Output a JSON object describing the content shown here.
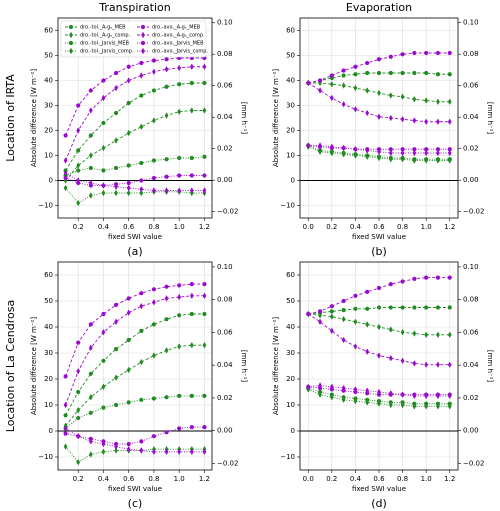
{
  "chart_data": [
    {
      "type": "line",
      "title": "Transpiration",
      "row_label": "Location of IRTA",
      "caption": "(a)",
      "ylabel": "Absolute difference [W m⁻²]",
      "xlabel": "fixed SWI value",
      "y2label": "[mm h⁻¹]",
      "legend": "upper left",
      "grid": true,
      "hline": 0,
      "xlim": [
        0.04,
        1.26
      ],
      "xticks": [
        {
          "value": 0.2,
          "label": "0.2"
        },
        {
          "value": 0.4,
          "label": "0.4"
        },
        {
          "value": 0.6,
          "label": "0.6"
        },
        {
          "value": 0.8,
          "label": "0.8"
        },
        {
          "value": 1.0,
          "label": "1.0"
        },
        {
          "value": 1.2,
          "label": "1.2"
        }
      ],
      "ylim": [
        -15,
        65
      ],
      "yticks": [
        {
          "value": -10,
          "label": "−10"
        },
        0,
        10,
        20,
        30,
        40,
        50,
        60
      ],
      "y2lim": [
        -0.024,
        0.103
      ],
      "y2ticks": [
        {
          "value": -0.02,
          "label": "−0.02"
        },
        {
          "value": 0,
          "label": "0.00"
        },
        0.02,
        0.04,
        0.06,
        0.08,
        {
          "value": 0.1,
          "label": "0.10"
        }
      ],
      "x": [
        0.1,
        0.2,
        0.3,
        0.4,
        0.5,
        0.6,
        0.7,
        0.8,
        0.9,
        1.0,
        1.1,
        1.2
      ],
      "series": [
        {
          "name": "dro.-tol._A-gₛ_MEB",
          "color": "#228b22",
          "marker": "o",
          "linestyle": "dashed",
          "values": [
            4,
            12,
            18,
            23,
            27,
            31,
            34,
            36,
            37.5,
            38.5,
            39,
            39
          ]
        },
        {
          "name": "dro.-tol._A-gₛ_comp.",
          "color": "#228b22",
          "marker": "d",
          "linestyle": "dashed",
          "values": [
            0,
            6,
            10,
            13,
            16,
            19,
            21.5,
            24,
            26,
            27.5,
            28,
            28
          ]
        },
        {
          "name": "dro.-tol._Jarvis_MEB",
          "color": "#228b22",
          "marker": "o",
          "linestyle": "dotted",
          "values": [
            2,
            4,
            5,
            4,
            5,
            6,
            7,
            8,
            8.5,
            9,
            9,
            9.5
          ]
        },
        {
          "name": "dro.-tol._Jarvis_comp.",
          "color": "#228b22",
          "marker": "d",
          "linestyle": "dotted",
          "values": [
            -3,
            -9,
            -6,
            -5,
            -5,
            -5,
            -5,
            -4.5,
            -4.5,
            -4.5,
            -5,
            -5
          ]
        },
        {
          "name": "dro.-avo._A-gₛ_MEB",
          "color": "#9a0ccc",
          "marker": "o",
          "linestyle": "dashed",
          "values": [
            18,
            30,
            36,
            40,
            43,
            45.5,
            47,
            48,
            48.5,
            49,
            49,
            49
          ]
        },
        {
          "name": "dro.-avo._A-gₛ_comp.",
          "color": "#9a0ccc",
          "marker": "d",
          "linestyle": "dashed",
          "values": [
            8,
            20,
            28,
            33,
            37,
            40,
            42,
            43.5,
            44.5,
            45,
            45.5,
            45.5
          ]
        },
        {
          "name": "dro.-avo._Jarvis_MEB",
          "color": "#9a0ccc",
          "marker": "o",
          "linestyle": "dotted",
          "values": [
            1,
            -1,
            -2,
            -2,
            -1.5,
            -1,
            0,
            1,
            1.5,
            2,
            2,
            2
          ]
        },
        {
          "name": "dro.-avo._Jarvis_comp.",
          "color": "#9a0ccc",
          "marker": "d",
          "linestyle": "dotted",
          "values": [
            3,
            0,
            -1,
            -2,
            -2.5,
            -3,
            -3.5,
            -4,
            -4,
            -4,
            -4,
            -4
          ]
        }
      ]
    },
    {
      "type": "line",
      "title": "Evaporation",
      "caption": "(b)",
      "ylabel": "Absolute difference [W m⁻²]",
      "xlabel": "fixed SWI value",
      "y2label": "[mm h⁻¹]",
      "grid": true,
      "hline": 0,
      "xlim": [
        -0.07,
        1.27
      ],
      "xticks": [
        {
          "value": 0,
          "label": "0.0"
        },
        {
          "value": 0.2,
          "label": "0.2"
        },
        {
          "value": 0.4,
          "label": "0.4"
        },
        {
          "value": 0.6,
          "label": "0.6"
        },
        {
          "value": 0.8,
          "label": "0.8"
        },
        {
          "value": 1.0,
          "label": "1.0"
        },
        {
          "value": 1.2,
          "label": "1.2"
        }
      ],
      "ylim": [
        -15,
        65
      ],
      "yticks": [
        {
          "value": -10,
          "label": "−10"
        },
        0,
        10,
        20,
        30,
        40,
        50,
        60
      ],
      "y2lim": [
        -0.024,
        0.103
      ],
      "y2ticks": [
        {
          "value": -0.02,
          "label": "−0.02"
        },
        {
          "value": 0,
          "label": "0.00"
        },
        0.02,
        0.04,
        0.06,
        0.08,
        {
          "value": 0.1,
          "label": "0.10"
        }
      ],
      "x": [
        0,
        0.1,
        0.2,
        0.3,
        0.4,
        0.5,
        0.6,
        0.7,
        0.8,
        0.9,
        1.0,
        1.1,
        1.2
      ],
      "series": [
        {
          "color": "#228b22",
          "marker": "o",
          "linestyle": "dashed",
          "values": [
            39,
            40,
            41,
            42,
            42.5,
            43,
            43,
            43,
            43,
            43,
            43,
            42.5,
            42.5
          ]
        },
        {
          "color": "#228b22",
          "marker": "d",
          "linestyle": "dashed",
          "values": [
            39,
            39,
            38.5,
            38,
            37,
            36,
            35,
            34,
            33.5,
            32.5,
            32,
            31.5,
            31.5
          ]
        },
        {
          "color": "#228b22",
          "marker": "o",
          "linestyle": "dotted",
          "values": [
            14,
            12,
            11.5,
            11,
            10.5,
            10,
            9.5,
            9,
            9,
            8.5,
            8.5,
            8.5,
            8.5
          ]
        },
        {
          "color": "#228b22",
          "marker": "d",
          "linestyle": "dotted",
          "values": [
            13.5,
            11.5,
            11,
            10.5,
            10,
            9.5,
            9,
            8.5,
            8.5,
            8,
            8,
            8,
            8
          ]
        },
        {
          "color": "#9a0ccc",
          "marker": "o",
          "linestyle": "dashed",
          "values": [
            39,
            40,
            42,
            44,
            45.5,
            47,
            48.5,
            49.5,
            50.5,
            51,
            51,
            51,
            51
          ]
        },
        {
          "color": "#9a0ccc",
          "marker": "d",
          "linestyle": "dashed",
          "values": [
            39,
            36,
            33,
            30.5,
            28.5,
            27,
            25.5,
            25,
            24.5,
            24,
            23.5,
            23.5,
            23.5
          ]
        },
        {
          "color": "#9a0ccc",
          "marker": "o",
          "linestyle": "dotted",
          "values": [
            14,
            13.5,
            13,
            13,
            12.5,
            12.5,
            12.5,
            12.5,
            12.5,
            12.5,
            12.5,
            12.5,
            12.5
          ]
        },
        {
          "color": "#9a0ccc",
          "marker": "d",
          "linestyle": "dotted",
          "values": [
            14,
            14,
            13.5,
            13,
            12.5,
            12,
            11.5,
            11,
            11,
            11,
            11,
            11,
            11
          ]
        }
      ]
    },
    {
      "type": "line",
      "row_label": "Location of La Cendrosa",
      "caption": "(c)",
      "ylabel": "Absolute difference [W m⁻²]",
      "xlabel": "fixed SWI value",
      "y2label": "[mm h⁻¹]",
      "grid": true,
      "hline": 0,
      "xlim": [
        0.04,
        1.26
      ],
      "xticks": [
        {
          "value": 0.2,
          "label": "0.2"
        },
        {
          "value": 0.4,
          "label": "0.4"
        },
        {
          "value": 0.6,
          "label": "0.6"
        },
        {
          "value": 0.8,
          "label": "0.8"
        },
        {
          "value": 1.0,
          "label": "1.0"
        },
        {
          "value": 1.2,
          "label": "1.2"
        }
      ],
      "ylim": [
        -15,
        65
      ],
      "yticks": [
        {
          "value": -10,
          "label": "−10"
        },
        0,
        10,
        20,
        30,
        40,
        50,
        60
      ],
      "y2lim": [
        -0.024,
        0.103
      ],
      "y2ticks": [
        {
          "value": -0.02,
          "label": "−0.02"
        },
        {
          "value": 0,
          "label": "0.00"
        },
        0.02,
        0.04,
        0.06,
        0.08,
        {
          "value": 0.1,
          "label": "0.10"
        }
      ],
      "x": [
        0.1,
        0.2,
        0.3,
        0.4,
        0.5,
        0.6,
        0.7,
        0.8,
        0.9,
        1.0,
        1.1,
        1.2
      ],
      "series": [
        {
          "color": "#228b22",
          "marker": "o",
          "linestyle": "dashed",
          "values": [
            6,
            15,
            22,
            27,
            31.5,
            35,
            38.5,
            41,
            43,
            44.5,
            45,
            45
          ]
        },
        {
          "color": "#228b22",
          "marker": "d",
          "linestyle": "dashed",
          "values": [
            2,
            8,
            13,
            17,
            20.5,
            23.5,
            26.5,
            29,
            31,
            32.5,
            33,
            33
          ]
        },
        {
          "color": "#228b22",
          "marker": "o",
          "linestyle": "dotted",
          "values": [
            1,
            5,
            7,
            9,
            10,
            11,
            12,
            12.5,
            13,
            13.5,
            13.5,
            13.5
          ]
        },
        {
          "color": "#228b22",
          "marker": "d",
          "linestyle": "dotted",
          "values": [
            -6,
            -12,
            -9,
            -8,
            -7.5,
            -7.5,
            -7.5,
            -7,
            -7,
            -7,
            -7,
            -7
          ]
        },
        {
          "color": "#9a0ccc",
          "marker": "o",
          "linestyle": "dashed",
          "values": [
            21,
            34,
            41,
            45,
            48.5,
            51,
            53,
            54.5,
            55.5,
            56,
            56.5,
            56.5
          ]
        },
        {
          "color": "#9a0ccc",
          "marker": "d",
          "linestyle": "dashed",
          "values": [
            10,
            23,
            32,
            38,
            42,
            45.5,
            48,
            49.5,
            51,
            51.5,
            52,
            52
          ]
        },
        {
          "color": "#9a0ccc",
          "marker": "o",
          "linestyle": "dotted",
          "values": [
            -1,
            -2,
            -3,
            -4,
            -5,
            -5,
            -4,
            -2,
            -0.5,
            1,
            1.5,
            1.5
          ]
        },
        {
          "color": "#9a0ccc",
          "marker": "d",
          "linestyle": "dotted",
          "values": [
            1,
            -2,
            -4,
            -5,
            -6,
            -7,
            -7.5,
            -8,
            -8,
            -8,
            -8,
            -8
          ]
        }
      ]
    },
    {
      "type": "line",
      "caption": "(d)",
      "ylabel": "Absolute difference [W m⁻²]",
      "xlabel": "fixed SWI value",
      "y2label": "[mm h⁻¹]",
      "grid": true,
      "hline": 0,
      "xlim": [
        -0.07,
        1.27
      ],
      "xticks": [
        {
          "value": 0,
          "label": "0.0"
        },
        {
          "value": 0.2,
          "label": "0.2"
        },
        {
          "value": 0.4,
          "label": "0.4"
        },
        {
          "value": 0.6,
          "label": "0.6"
        },
        {
          "value": 0.8,
          "label": "0.8"
        },
        {
          "value": 1.0,
          "label": "1.0"
        },
        {
          "value": 1.2,
          "label": "1.2"
        }
      ],
      "ylim": [
        -15,
        65
      ],
      "yticks": [
        {
          "value": -10,
          "label": "−10"
        },
        0,
        10,
        20,
        30,
        40,
        50,
        60
      ],
      "y2lim": [
        -0.024,
        0.103
      ],
      "y2ticks": [
        {
          "value": -0.02,
          "label": "−0.02"
        },
        {
          "value": 0,
          "label": "0.00"
        },
        0.02,
        0.04,
        0.06,
        0.08,
        {
          "value": 0.1,
          "label": "0.10"
        }
      ],
      "x": [
        0,
        0.1,
        0.2,
        0.3,
        0.4,
        0.5,
        0.6,
        0.7,
        0.8,
        0.9,
        1.0,
        1.1,
        1.2
      ],
      "series": [
        {
          "color": "#228b22",
          "marker": "o",
          "linestyle": "dashed",
          "values": [
            45,
            45.5,
            46,
            46.5,
            47,
            47,
            47.5,
            47.5,
            47.5,
            47.5,
            47.5,
            47.5,
            47.5
          ]
        },
        {
          "color": "#228b22",
          "marker": "d",
          "linestyle": "dashed",
          "values": [
            45,
            44.5,
            44,
            43,
            42,
            41,
            40,
            39,
            38,
            37.5,
            37,
            37,
            37
          ]
        },
        {
          "color": "#228b22",
          "marker": "o",
          "linestyle": "dotted",
          "values": [
            16.5,
            15,
            14,
            13,
            12.5,
            12,
            11.5,
            11,
            11,
            10.5,
            10.5,
            10.5,
            10.5
          ]
        },
        {
          "color": "#228b22",
          "marker": "d",
          "linestyle": "dotted",
          "values": [
            16,
            14,
            13,
            12,
            11.5,
            11,
            10.5,
            10,
            10,
            9.5,
            9.5,
            9.5,
            9.5
          ]
        },
        {
          "color": "#9a0ccc",
          "marker": "o",
          "linestyle": "dashed",
          "values": [
            45,
            46,
            48,
            50,
            52,
            53.5,
            55,
            56.5,
            57.5,
            58.5,
            59,
            59,
            59
          ]
        },
        {
          "color": "#9a0ccc",
          "marker": "d",
          "linestyle": "dashed",
          "values": [
            45,
            42,
            38.5,
            35,
            32.5,
            30.5,
            29,
            28,
            27,
            26,
            25.5,
            25.5,
            25.5
          ]
        },
        {
          "color": "#9a0ccc",
          "marker": "o",
          "linestyle": "dotted",
          "values": [
            17,
            16.5,
            16,
            15.5,
            15,
            14.5,
            14,
            14,
            14,
            14,
            14,
            14,
            14
          ]
        },
        {
          "color": "#9a0ccc",
          "marker": "d",
          "linestyle": "dotted",
          "values": [
            17,
            17.5,
            17,
            16.5,
            16,
            15.5,
            15,
            14.5,
            14,
            13.5,
            13.5,
            13.5,
            13.5
          ]
        }
      ]
    }
  ]
}
